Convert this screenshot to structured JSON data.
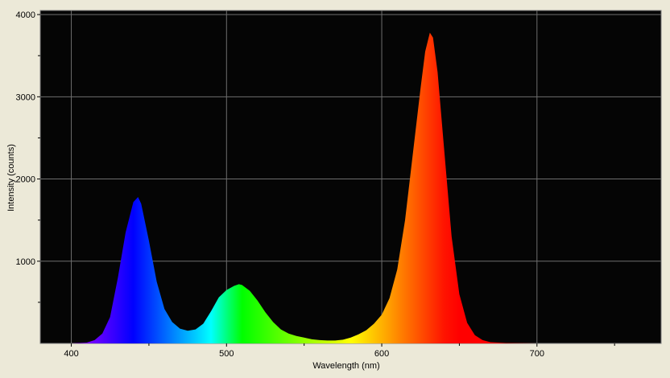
{
  "colors": {
    "background": "#ece9d8",
    "plot_background": "#050505",
    "grid": "#6e6e6e",
    "axis_text": "#000000"
  },
  "chart_data": {
    "type": "area",
    "title": "",
    "xlabel": "Wavelength (nm)",
    "ylabel": "Intensity (counts)",
    "xlim": [
      380,
      780
    ],
    "ylim": [
      0,
      4050
    ],
    "grid": true,
    "legend": "none",
    "x_ticks": [
      400,
      500,
      600,
      700
    ],
    "x_tick_labels": [
      "400",
      "500",
      "600",
      "700"
    ],
    "y_ticks": [
      1000,
      2000,
      3000,
      4000
    ],
    "y_tick_labels": [
      "1000",
      "2000",
      "3000",
      "4000"
    ],
    "fill": "wavelength-spectrum-colors",
    "series": [
      {
        "x": [
          400,
          410,
          415,
          420,
          425,
          430,
          435,
          440,
          443,
          445,
          450,
          455,
          460,
          465,
          470,
          475,
          480,
          485,
          490,
          495,
          500,
          505,
          508,
          510,
          515,
          520,
          525,
          530,
          535,
          540,
          545,
          550,
          555,
          560,
          565,
          570,
          575,
          580,
          585,
          590,
          595,
          600,
          605,
          610,
          615,
          620,
          625,
          628,
          631,
          633,
          636,
          640,
          645,
          650,
          655,
          660,
          665,
          670,
          680,
          700,
          720,
          780
        ],
        "values": [
          0,
          10,
          40,
          120,
          320,
          800,
          1350,
          1720,
          1780,
          1700,
          1250,
          750,
          420,
          260,
          180,
          155,
          170,
          240,
          390,
          560,
          650,
          700,
          720,
          710,
          640,
          520,
          380,
          260,
          170,
          120,
          90,
          70,
          50,
          40,
          35,
          35,
          45,
          70,
          110,
          160,
          240,
          350,
          550,
          900,
          1500,
          2300,
          3100,
          3550,
          3780,
          3720,
          3300,
          2400,
          1300,
          600,
          250,
          100,
          40,
          15,
          5,
          0,
          0,
          0
        ]
      }
    ]
  }
}
